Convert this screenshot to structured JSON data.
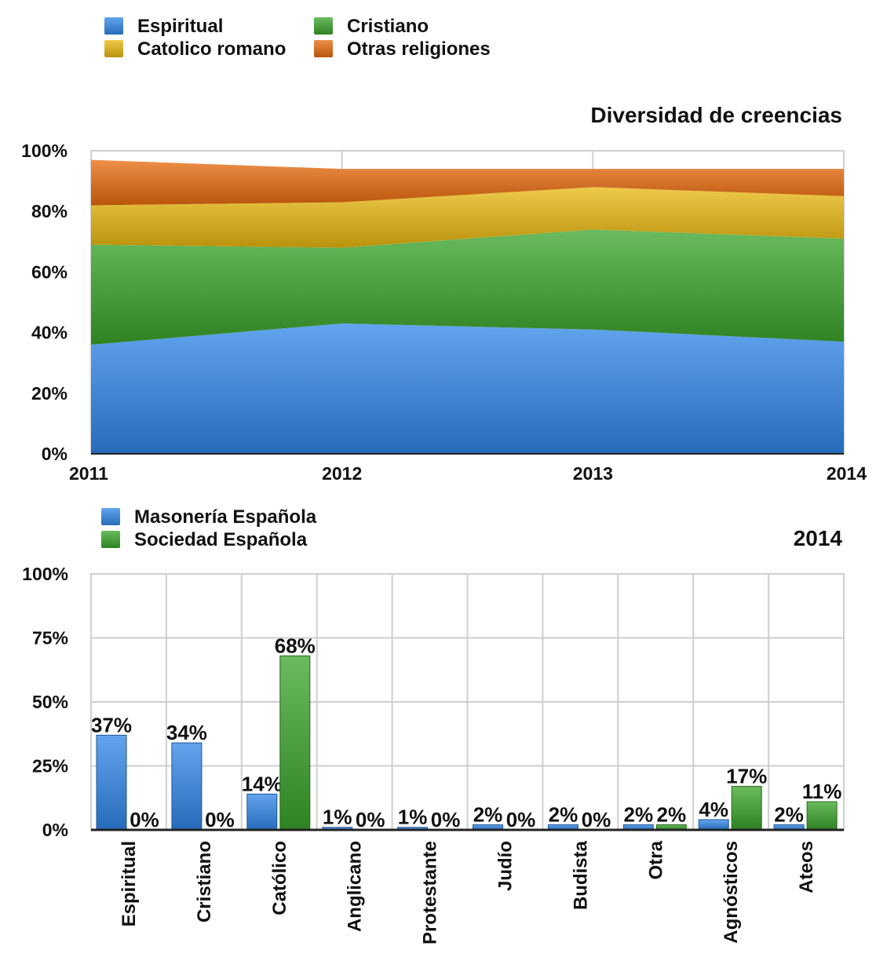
{
  "colors": {
    "espiritual": "#2f86e8",
    "cristiano": "#3aa32a",
    "catolico": "#e8b80f",
    "otras": "#e96a0c",
    "grid": "#cfcfcf",
    "axis": "#222222"
  },
  "chart_data": [
    {
      "type": "area",
      "title": "Diversidad de creencias",
      "x": [
        "2011",
        "2012",
        "2013",
        "2014"
      ],
      "ylim": [
        0,
        100
      ],
      "yticks": [
        0,
        20,
        40,
        60,
        80,
        100
      ],
      "ytick_labels": [
        "0%",
        "20%",
        "40%",
        "60%",
        "80%",
        "100%"
      ],
      "stacked": true,
      "grid": true,
      "legend": [
        {
          "name": "Espiritual",
          "color_key": "espiritual"
        },
        {
          "name": "Cristiano",
          "color_key": "cristiano"
        },
        {
          "name": "Catolico romano",
          "color_key": "catolico"
        },
        {
          "name": "Otras religiones",
          "color_key": "otras"
        }
      ],
      "series": [
        {
          "name": "Espiritual",
          "color_key": "espiritual",
          "values": [
            36,
            43,
            41,
            37
          ]
        },
        {
          "name": "Cristiano",
          "color_key": "cristiano",
          "values": [
            33,
            25,
            33,
            34
          ]
        },
        {
          "name": "Catolico romano",
          "color_key": "catolico",
          "values": [
            13,
            15,
            14,
            14
          ]
        },
        {
          "name": "Otras religiones",
          "color_key": "otras",
          "values": [
            15,
            11,
            6,
            9
          ]
        }
      ]
    },
    {
      "type": "bar",
      "title": "2014",
      "categories": [
        "Espiritual",
        "Cristiano",
        "Católico",
        "Anglicano",
        "Protestante",
        "Judío",
        "Budista",
        "Otra",
        "Agnósticos",
        "Ateos"
      ],
      "ylim": [
        0,
        100
      ],
      "yticks": [
        0,
        25,
        50,
        75,
        100
      ],
      "ytick_labels": [
        "0%",
        "25%",
        "50%",
        "75%",
        "100%"
      ],
      "grid": true,
      "series": [
        {
          "name": "Masonería Española",
          "color_key": "espiritual",
          "values": [
            37,
            34,
            14,
            1,
            1,
            2,
            2,
            2,
            4,
            2
          ],
          "labels": [
            "37%",
            "34%",
            "14%",
            "1%",
            "1%",
            "2%",
            "2%",
            "2%",
            "4%",
            "2%"
          ]
        },
        {
          "name": "Sociedad Española",
          "color_key": "cristiano",
          "values": [
            0,
            0,
            68,
            0,
            0,
            0,
            0,
            2,
            17,
            11
          ],
          "labels": [
            "0%",
            "0%",
            "68%",
            "0%",
            "0%",
            "0%",
            "0%",
            "2%",
            "17%",
            "11%"
          ]
        }
      ]
    }
  ]
}
